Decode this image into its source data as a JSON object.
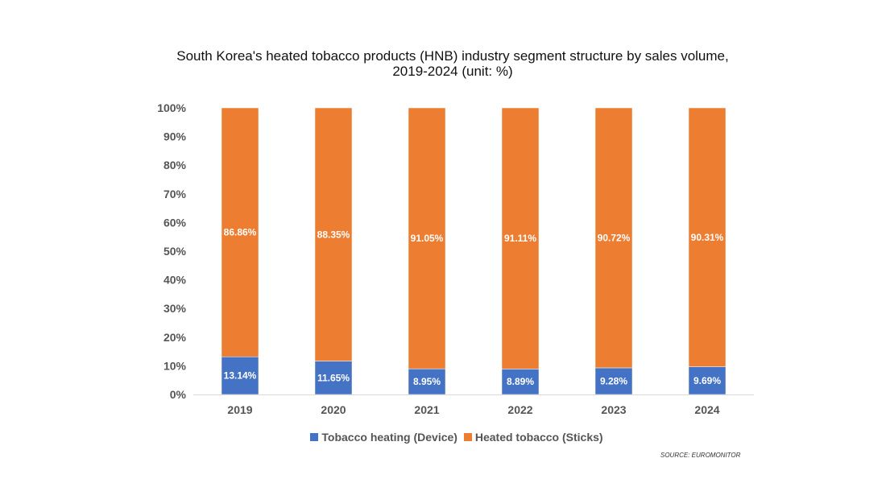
{
  "chart_data": {
    "type": "bar",
    "stacked": true,
    "title": "South Korea's heated tobacco products (HNB) industry segment structure by sales volume,",
    "title_line2": "2019-2024 (unit: %)",
    "xlabel": "",
    "ylabel": "",
    "categories": [
      "2019",
      "2020",
      "2021",
      "2022",
      "2023",
      "2024"
    ],
    "series": [
      {
        "name": "Tobacco heating (Device)",
        "color": "#4472c4",
        "values": [
          13.14,
          11.65,
          8.95,
          8.89,
          9.28,
          9.69
        ],
        "labels": [
          "13.14%",
          "11.65%",
          "8.95%",
          "8.89%",
          "9.28%",
          "9.69%"
        ]
      },
      {
        "name": "Heated tobacco (Sticks)",
        "color": "#ed7d31",
        "values": [
          86.86,
          88.35,
          91.05,
          91.11,
          90.72,
          90.31
        ],
        "labels": [
          "86.86%",
          "88.35%",
          "91.05%",
          "91.11%",
          "90.72%",
          "90.31%"
        ]
      }
    ],
    "ylim": [
      0,
      100
    ],
    "yticks": [
      "0%",
      "10%",
      "20%",
      "30%",
      "40%",
      "50%",
      "60%",
      "70%",
      "80%",
      "90%",
      "100%"
    ],
    "grid": false,
    "legend_position": "bottom"
  },
  "source": "SOURCE: EUROMONITOR"
}
